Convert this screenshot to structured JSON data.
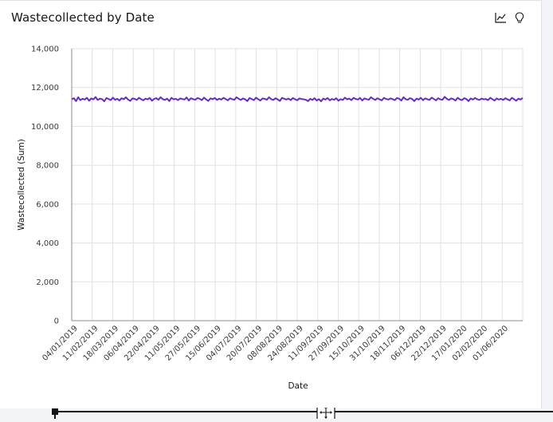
{
  "header": {
    "title": "Wastecollected by Date",
    "icons": [
      "line-chart-icon",
      "lightbulb-icon"
    ]
  },
  "colors": {
    "series": "#6929c4",
    "grid": "#e0e0e0",
    "axis": "#8d8d8d"
  },
  "chart_data": {
    "type": "line",
    "title": "Wastecollected by Date",
    "xlabel": "Date",
    "ylabel": "Wastecollected (Sum)",
    "ylim": [
      0,
      14000
    ],
    "yticks": [
      0,
      2000,
      4000,
      6000,
      8000,
      10000,
      12000,
      14000
    ],
    "ytick_labels": [
      "0",
      "2,000",
      "4,000",
      "6,000",
      "8,000",
      "10,000",
      "12,000",
      "14,000"
    ],
    "xtick_labels": [
      "04/01/2019",
      "11/02/2019",
      "18/03/2019",
      "06/04/2019",
      "22/04/2019",
      "11/05/2019",
      "27/05/2019",
      "15/06/2019",
      "04/07/2019",
      "20/07/2019",
      "08/08/2019",
      "24/08/2019",
      "11/09/2019",
      "27/09/2019",
      "15/10/2019",
      "31/10/2019",
      "18/11/2019",
      "06/12/2019",
      "22/12/2019",
      "17/01/2020",
      "02/02/2020",
      "01/06/2020"
    ],
    "grid": true,
    "series": [
      {
        "values": [
          11400,
          11450,
          11300,
          11500,
          11350,
          11420,
          11380,
          11470,
          11320,
          11440,
          11390,
          11510,
          11360,
          11430,
          11400,
          11290,
          11460,
          11410,
          11350,
          11480,
          11370,
          11420,
          11330,
          11450,
          11400,
          11500,
          11380,
          11310,
          11440,
          11420,
          11360,
          11470,
          11400,
          11340,
          11430,
          11390,
          11460,
          11320,
          11410,
          11450,
          11370,
          11500,
          11400,
          11360,
          11430,
          11300,
          11470,
          11390,
          11420,
          11350,
          11440,
          11410,
          11380,
          11490,
          11330,
          11450,
          11400,
          11370,
          11460,
          11420,
          11350,
          11480,
          11390,
          11310,
          11440,
          11400,
          11460,
          11360,
          11430,
          11380,
          11470,
          11410,
          11340,
          11450,
          11400,
          11370,
          11500,
          11420,
          11360,
          11440,
          11390,
          11300,
          11460,
          11410,
          11350,
          11480,
          11400,
          11330,
          11440,
          11420,
          11370,
          11500,
          11400,
          11360,
          11450,
          11390,
          11310,
          11470,
          11420,
          11380,
          11430,
          11350,
          11460,
          11400,
          11340,
          11440,
          11410,
          11390,
          11370,
          11300,
          11420,
          11360,
          11450,
          11330,
          11400,
          11290,
          11430,
          11380,
          11460,
          11340,
          11410,
          11370,
          11450,
          11320,
          11400,
          11360,
          11480,
          11390,
          11430,
          11350,
          11470,
          11410,
          11380,
          11460,
          11330,
          11440,
          11400,
          11370,
          11500,
          11420,
          11360,
          11450,
          11390,
          11340,
          11470,
          11410,
          11380,
          11440,
          11400,
          11350,
          11460,
          11420,
          11330,
          11500,
          11400,
          11370,
          11450,
          11410,
          11300,
          11430,
          11380,
          11470,
          11350,
          11440,
          11400,
          11360,
          11480,
          11410,
          11340,
          11450,
          11390,
          11370,
          11520,
          11420,
          11360,
          11440,
          11400,
          11330,
          11470,
          11390,
          11350,
          11450,
          11410,
          11300,
          11440,
          11380,
          11460,
          11400,
          11360,
          11430,
          11390,
          11410,
          11350,
          11470,
          11400,
          11330,
          11440,
          11380,
          11420,
          11360,
          11450,
          11390,
          11340,
          11470,
          11400,
          11320,
          11430,
          11380,
          11460
        ]
      }
    ]
  },
  "footer": {
    "icons": [
      "move-icon"
    ]
  }
}
